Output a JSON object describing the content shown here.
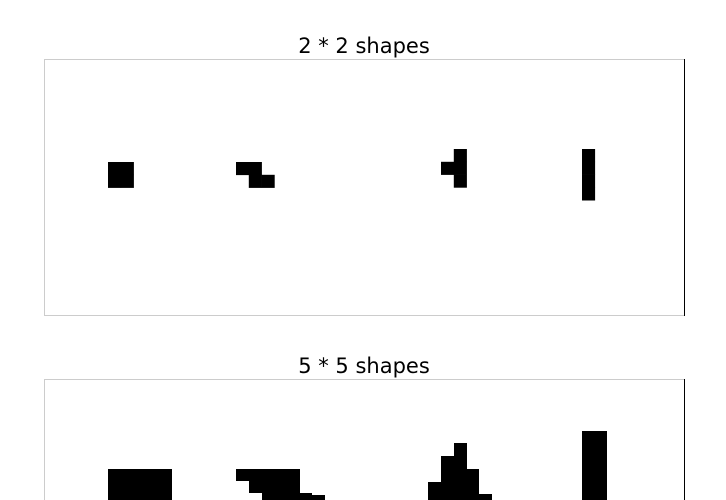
{
  "panels": [
    {
      "title": "2 * 2 shapes",
      "shapes": [
        {
          "name": "square",
          "cells": [
            [
              0,
              0
            ],
            [
              1,
              0
            ],
            [
              0,
              1
            ],
            [
              1,
              1
            ]
          ]
        },
        {
          "name": "z-step",
          "cells": [
            [
              0,
              0
            ],
            [
              1,
              0
            ],
            [
              1,
              1
            ],
            [
              2,
              1
            ]
          ]
        },
        {
          "name": "bent",
          "cells": [
            [
              1,
              0
            ],
            [
              0,
              1
            ],
            [
              1,
              1
            ],
            [
              1,
              2
            ]
          ]
        },
        {
          "name": "bar",
          "cells": [
            [
              0,
              0
            ],
            [
              0,
              1
            ],
            [
              0,
              2
            ],
            [
              0,
              3
            ]
          ]
        }
      ]
    },
    {
      "title": "5 * 5 shapes",
      "shapes": [
        {
          "name": "square",
          "cells": []
        },
        {
          "name": "z-step",
          "cells": []
        },
        {
          "name": "bent",
          "cells": []
        },
        {
          "name": "bar",
          "cells": []
        }
      ]
    }
  ],
  "colors": {
    "fill": "#000000",
    "frame": "#cccccc",
    "frame_right": "#000000"
  }
}
